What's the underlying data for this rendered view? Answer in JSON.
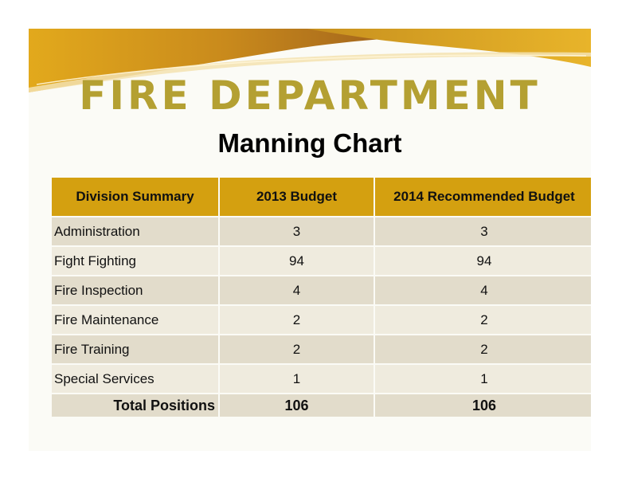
{
  "slide": {
    "title": "FIRE DEPARTMENT",
    "subtitle": "Manning Chart"
  },
  "colors": {
    "title": "#b4a032",
    "header_fill": "#d4a010",
    "row_dark": "#e2dccb",
    "row_light": "#efebde",
    "banner_gold": "#d9a21b",
    "banner_brown": "#a7671b"
  },
  "table": {
    "headers": [
      "Division Summary",
      "2013 Budget",
      "2014 Recommended Budget"
    ],
    "rows": [
      {
        "division": "Administration",
        "budget_2013": "3",
        "budget_2014": "3"
      },
      {
        "division": "Fight Fighting",
        "budget_2013": "94",
        "budget_2014": "94"
      },
      {
        "division": "Fire Inspection",
        "budget_2013": "4",
        "budget_2014": "4"
      },
      {
        "division": "Fire Maintenance",
        "budget_2013": "2",
        "budget_2014": "2"
      },
      {
        "division": "Fire Training",
        "budget_2013": "2",
        "budget_2014": "2"
      },
      {
        "division": "Special Services",
        "budget_2013": "1",
        "budget_2014": "1"
      }
    ],
    "total": {
      "label": "Total Positions",
      "budget_2013": "106",
      "budget_2014": "106"
    }
  }
}
